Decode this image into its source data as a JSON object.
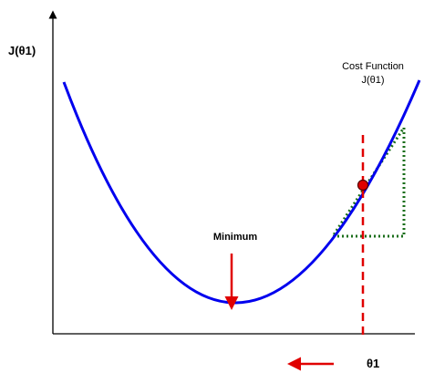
{
  "labels": {
    "y_axis": "J(θ1)",
    "x_axis": "θ1",
    "minimum": "Minimum",
    "cost_function_line1": "Cost Function",
    "cost_function_line2": "J(θ1)"
  },
  "colors": {
    "axis": "#000000",
    "curve": "#0000ee",
    "tangent_triangle": "#1a6e1a",
    "vertical_marker": "#e00000",
    "point_fill": "#e00000",
    "point_stroke": "#550000",
    "arrow": "#e00000"
  },
  "icons": {
    "minimum_marker": "arrow-down-icon",
    "step_direction": "arrow-left-icon"
  }
}
